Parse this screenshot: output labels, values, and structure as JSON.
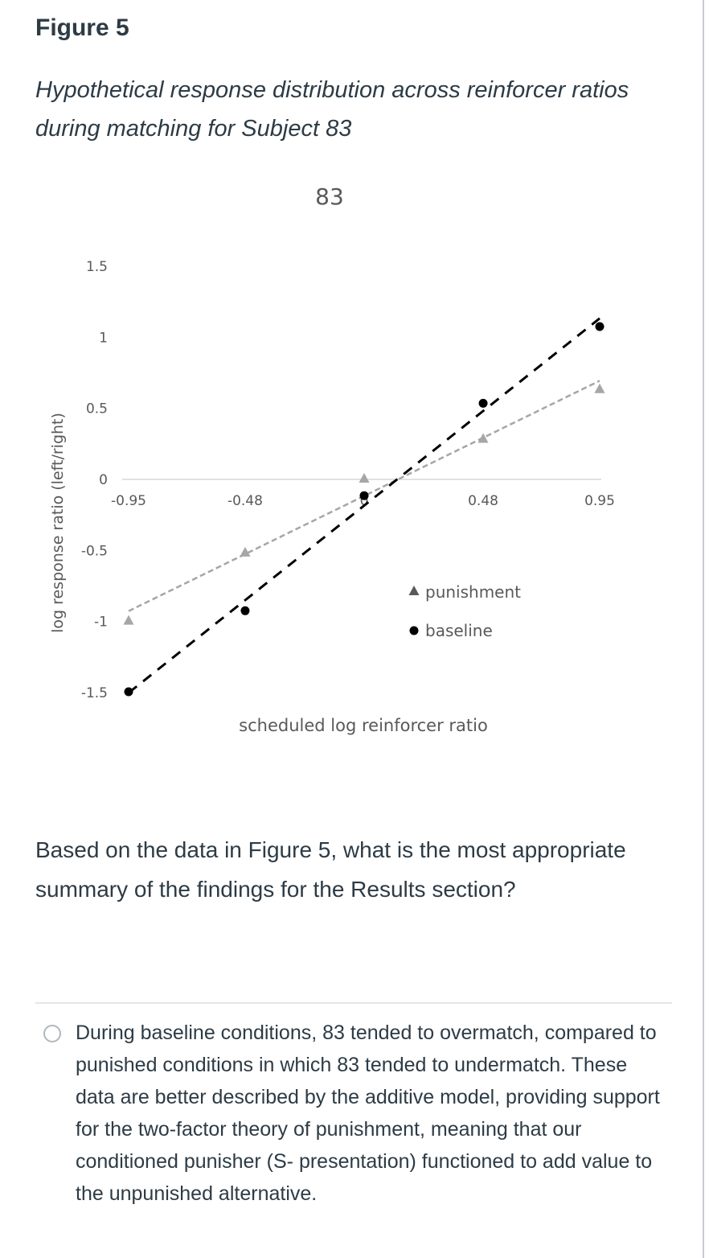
{
  "figure": {
    "label": "Figure 5",
    "caption": "Hypothetical response distribution across reinforcer ratios during matching for Subject 83"
  },
  "chart_data": {
    "type": "scatter",
    "title": "83",
    "xlabel": "scheduled log reinforcer ratio",
    "ylabel": "log response ratio (left/right)",
    "x_ticks": [
      "-0.95",
      "-0.48",
      "0",
      "0.48",
      "0.95"
    ],
    "y_ticks": [
      "1.5",
      "1",
      "0.5",
      "0",
      "-0.5",
      "-1",
      "-1.5"
    ],
    "ylim": [
      -1.5,
      1.5
    ],
    "xlim": [
      -0.95,
      0.95
    ],
    "grid": false,
    "legend_position": "lower-right",
    "series": [
      {
        "name": "punishment",
        "marker": "triangle",
        "color": "#a6a6a6",
        "trendline": "dashed",
        "x": [
          -0.95,
          -0.48,
          0,
          0.48,
          0.95
        ],
        "y": [
          -1.0,
          -0.52,
          0.0,
          0.28,
          0.63
        ]
      },
      {
        "name": "baseline",
        "marker": "circle",
        "color": "#000000",
        "trendline": "dashed",
        "x": [
          -0.95,
          -0.48,
          0,
          0.48,
          0.95
        ],
        "y": [
          -1.5,
          -0.93,
          -0.12,
          0.53,
          1.07
        ]
      }
    ]
  },
  "question": {
    "text": "Based on the data in Figure 5, what is the most appropriate summary of the findings for the Results section?"
  },
  "answer_option": {
    "text": "During baseline conditions, 83 tended to overmatch, compared to punished conditions in which 83 tended to undermatch. These data are better described by the additive model, providing support for the two-factor theory of punishment, meaning that our conditioned punisher (S- presentation) functioned to add value to the unpunished alternative."
  }
}
